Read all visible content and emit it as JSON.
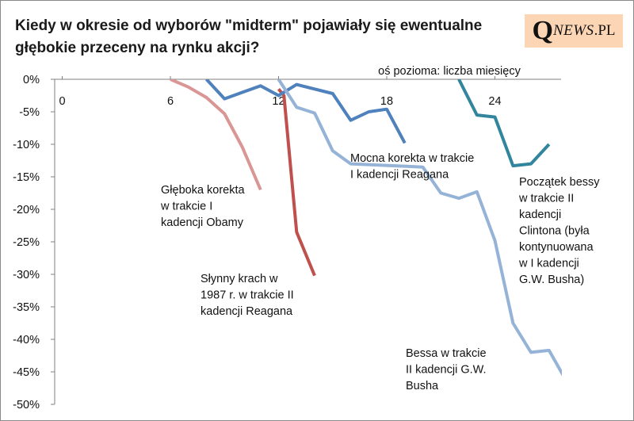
{
  "title": "Kiedy w okresie od wyborów \"midterm\" pojawiały się ewentualne głębokie przeceny na rynku akcji?",
  "logo": {
    "q": "Q",
    "news": "NEWS",
    "pl": ".PL",
    "background": "#fcd5b4"
  },
  "chart_data": {
    "type": "line",
    "title": "Kiedy w okresie od wyborów \"midterm\" pojawiały się ewentualne głębokie przeceny na rynku akcji?",
    "xlabel": "oś pozioma: liczba miesięcy",
    "ylabel": "",
    "xlim": [
      -1,
      28
    ],
    "ylim": [
      -50,
      0
    ],
    "x_ticks": [
      0,
      6,
      12,
      18,
      24
    ],
    "x_tick_labels": [
      "0",
      "6",
      "12",
      "18",
      "24"
    ],
    "y_ticks": [
      0,
      -5,
      -10,
      -15,
      -20,
      -25,
      -30,
      -35,
      -40,
      -45,
      -50
    ],
    "y_tick_labels": [
      "0%",
      "-5%",
      "-10%",
      "-15%",
      "-20%",
      "-25%",
      "-30%",
      "-35%",
      "-40%",
      "-45%",
      "-50%"
    ],
    "grid": false,
    "legend": "none",
    "series": [
      {
        "color": "#da9694",
        "points": [
          [
            6,
            0
          ],
          [
            7,
            -1.2
          ],
          [
            8,
            -2.8
          ],
          [
            9,
            -5.3
          ],
          [
            10,
            -10.5
          ],
          [
            11,
            -17.0
          ]
        ],
        "annotation": [
          "Głęboka korekta",
          "w trakcie I",
          "kadencji Obamy"
        ]
      },
      {
        "color": "#c0504d",
        "points": [
          [
            12,
            -1.5
          ],
          [
            12.3,
            -2.5
          ],
          [
            13,
            -23.5
          ],
          [
            14,
            -30.2
          ]
        ],
        "annotation": [
          "Słynny krach w",
          "1987 r. w trakcie II",
          "kadencji Reagana"
        ]
      },
      {
        "color": "#4f81bd",
        "points": [
          [
            8,
            0
          ],
          [
            9,
            -3.0
          ],
          [
            10,
            -2.0
          ],
          [
            11,
            -1.0
          ],
          [
            12,
            -2.5
          ],
          [
            13,
            -0.8
          ],
          [
            14,
            -1.5
          ],
          [
            15,
            -2.2
          ],
          [
            16,
            -6.3
          ],
          [
            17,
            -5.0
          ],
          [
            18,
            -4.6
          ],
          [
            19,
            -9.8
          ]
        ],
        "annotation": [
          "Mocna korekta w trakcie",
          "I kadencji Reagana"
        ]
      },
      {
        "color": "#95b3d7",
        "points": [
          [
            12,
            0
          ],
          [
            13,
            -4.3
          ],
          [
            14,
            -5.2
          ],
          [
            15,
            -11.0
          ],
          [
            16,
            -13.0
          ],
          [
            20,
            -13.5
          ],
          [
            21,
            -17.5
          ],
          [
            22,
            -18.3
          ],
          [
            23,
            -17.3
          ],
          [
            24,
            -24.8
          ],
          [
            25,
            -37.5
          ],
          [
            26,
            -42.0
          ],
          [
            27,
            -41.7
          ],
          [
            28,
            -46.6
          ]
        ],
        "annotation": [
          "Bessa w trakcie",
          "II kadencji G.W.",
          "Busha"
        ]
      },
      {
        "color": "#31859c",
        "points": [
          [
            22,
            0
          ],
          [
            23,
            -5.5
          ],
          [
            24,
            -5.8
          ],
          [
            25,
            -13.3
          ],
          [
            26,
            -13.0
          ],
          [
            27,
            -10.0
          ]
        ],
        "annotation": [
          "Początek bessy",
          "w trakcie II",
          "kadencji",
          "Clintona (była",
          "kontynuowana",
          "w I kadencji",
          "G.W. Busha)"
        ]
      }
    ]
  }
}
